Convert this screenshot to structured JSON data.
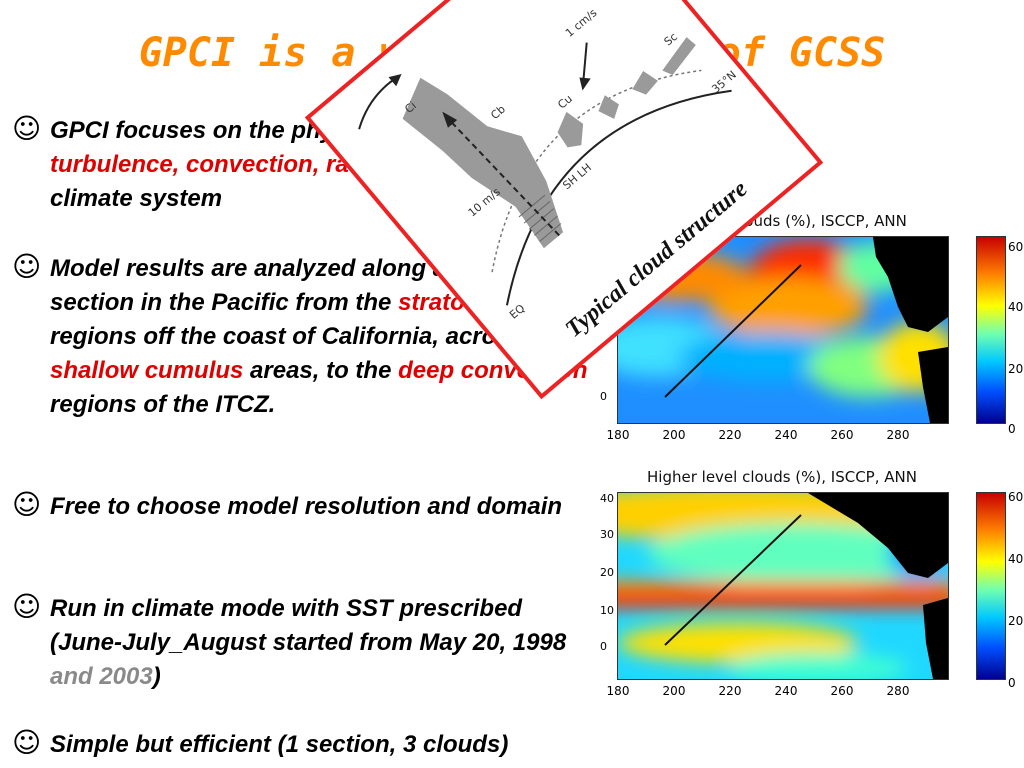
{
  "slide": {
    "title": "GPCI is a working group of GCSS"
  },
  "bullets": [
    {
      "symbol": "☺",
      "segments": [
        {
          "text": "GPCI focuses on the physics of ",
          "color": "black"
        },
        {
          "text": "clouds, turbulence, convection, ",
          "color": "red"
        },
        {
          "text": "radiation,",
          "color": "red"
        },
        {
          "text": " in the 3D climate system",
          "color": "black"
        }
      ]
    },
    {
      "symbol": "☺",
      "segments": [
        {
          "text": "Model results are analyzed along a cross-section in the Pacific from the ",
          "color": "black"
        },
        {
          "text": "stratocumulus",
          "color": "red"
        },
        {
          "text": " regions off the coast of California, across the ",
          "color": "black"
        },
        {
          "text": "shallow cumulus",
          "color": "red"
        },
        {
          "text": " areas, to the ",
          "color": "black"
        },
        {
          "text": "deep convection",
          "color": "red"
        },
        {
          "text": " regions of the ITCZ.",
          "color": "black"
        }
      ]
    },
    {
      "symbol": "☺",
      "segments": [
        {
          "text": "Free to choose model resolution and domain",
          "color": "black"
        }
      ]
    },
    {
      "symbol": "☺",
      "segments": [
        {
          "text": "Run in climate mode with SST prescribed (June-July_August started from May 20, 1998 ",
          "color": "black"
        },
        {
          "text": "and 2003",
          "color": "gray"
        },
        {
          "text": ")",
          "color": "black"
        }
      ]
    },
    {
      "symbol": "☺",
      "segments": [
        {
          "text": "Simple but efficient (1 section, 3 clouds)",
          "color": "black"
        }
      ]
    }
  ],
  "maps": [
    {
      "title": "Low level clouds (%), ISCCP, ANN",
      "y_ticks": [
        "40",
        "30",
        "20",
        "10",
        "0"
      ],
      "x_ticks": [
        "180",
        "200",
        "220",
        "240",
        "260",
        "280"
      ],
      "colorbar_ticks": [
        "60",
        "40",
        "20",
        "0"
      ]
    },
    {
      "title": "Higher level clouds (%), ISCCP, ANN",
      "y_ticks": [
        "40",
        "30",
        "20",
        "10",
        "0"
      ],
      "x_ticks": [
        "180",
        "200",
        "220",
        "240",
        "260",
        "280"
      ],
      "colorbar_ticks": [
        "60",
        "40",
        "20",
        "0"
      ]
    }
  ],
  "diagram": {
    "caption": "Typical cloud structure",
    "labels": [
      "Ci",
      "Cb",
      "Cu",
      "Sc",
      "1 cm/s",
      "10 m/s",
      "35°N",
      "EQ",
      "SH LH"
    ]
  },
  "colors": {
    "title": "#ff8a00",
    "highlight": "#e10000",
    "muted": "#8a8a8a",
    "frame": "#ee2222"
  }
}
